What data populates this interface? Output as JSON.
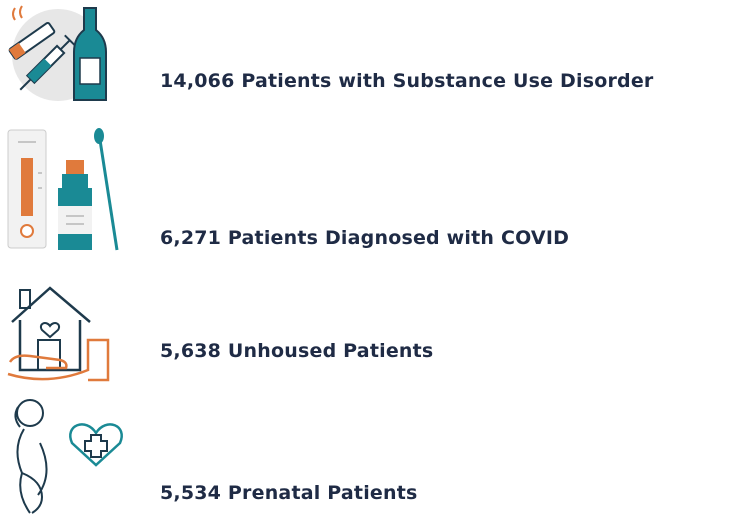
{
  "items": [
    {
      "label": "14,066 Patients with Substance Use Disorder"
    },
    {
      "label": "6,271 Patients Diagnosed with COVID"
    },
    {
      "label": "5,638 Unhoused Patients"
    },
    {
      "label": "5,534 Prenatal Patients"
    }
  ]
}
